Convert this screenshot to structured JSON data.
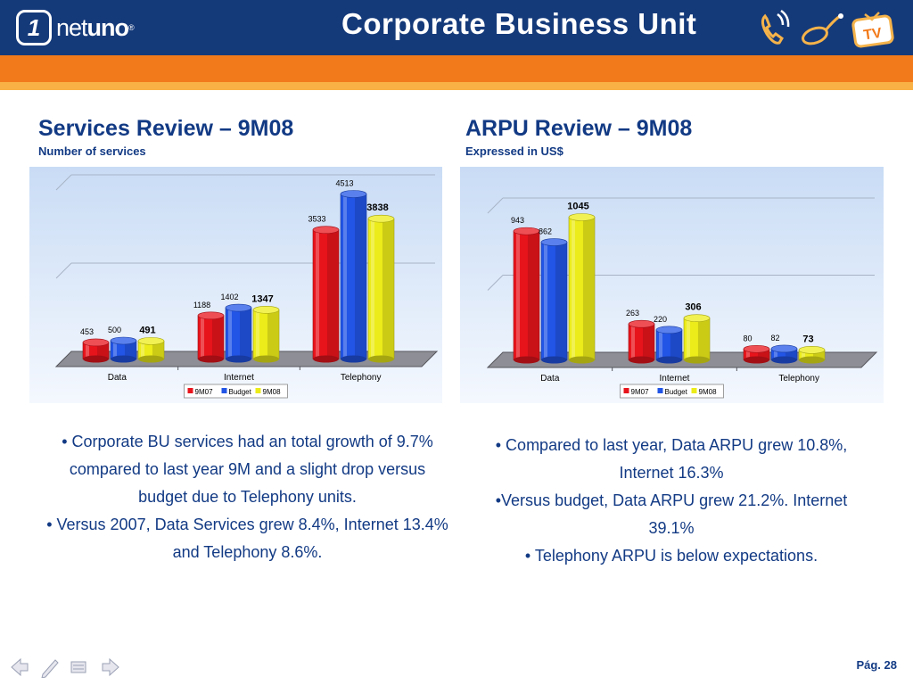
{
  "header": {
    "logo_number": "1",
    "logo_text_light": "net",
    "logo_text_bold": "uno",
    "logo_mark": "®",
    "title": "Corporate Business Unit",
    "icons": [
      "phone-icon",
      "mouse-icon",
      "tv-icon"
    ],
    "tv_icon_text": "TV",
    "colors": {
      "header": "#153a7a",
      "stripe": "#f27a1a",
      "stripe_light": "#f9b044",
      "text": "#123a84"
    }
  },
  "left": {
    "title": "Services Review – 9M08",
    "subtitle": "Number of services",
    "bullets": [
      "• Corporate BU services had an total growth of 9.7% compared to last year 9M and a slight drop versus budget due to Telephony units.",
      "• Versus 2007, Data Services grew 8.4%, Internet 13.4% and Telephony 8.6%."
    ]
  },
  "right": {
    "title": "ARPU Review – 9M08",
    "subtitle": "Expressed in US$",
    "bullets": [
      "• Compared to last year, Data ARPU grew 10.8%, Internet 16.3%",
      "•Versus budget, Data ARPU grew 21.2%. Internet 39.1%",
      "• Telephony ARPU is below expectations."
    ]
  },
  "chart_data": [
    {
      "type": "bar",
      "categories": [
        "Data",
        "Internet",
        "Telephony"
      ],
      "series": [
        {
          "name": "9M07",
          "values": [
            453,
            1188,
            3533
          ],
          "color": "#e8141c"
        },
        {
          "name": "Budget",
          "values": [
            500,
            1402,
            4513
          ],
          "color": "#2255e6"
        },
        {
          "name": "9M08",
          "values": [
            491,
            1347,
            3838
          ],
          "color": "#ecec1a"
        }
      ],
      "ylim": [
        0,
        4513
      ],
      "legend": "bottom",
      "grid": true
    },
    {
      "type": "bar",
      "categories": [
        "Data",
        "Internet",
        "Telephony"
      ],
      "series": [
        {
          "name": "9M07",
          "values": [
            943,
            263,
            80
          ],
          "color": "#e8141c"
        },
        {
          "name": "Budget",
          "values": [
            862,
            220,
            82
          ],
          "color": "#2255e6"
        },
        {
          "name": "9M08",
          "values": [
            1045,
            306,
            73
          ],
          "color": "#ecec1a"
        }
      ],
      "ylim": [
        0,
        1045
      ],
      "legend": "bottom",
      "grid": true
    }
  ],
  "footer": {
    "page": "Pág. 28",
    "nav_icons": [
      "back-arrow-icon",
      "pen-icon",
      "menu-icon",
      "forward-arrow-icon"
    ]
  }
}
